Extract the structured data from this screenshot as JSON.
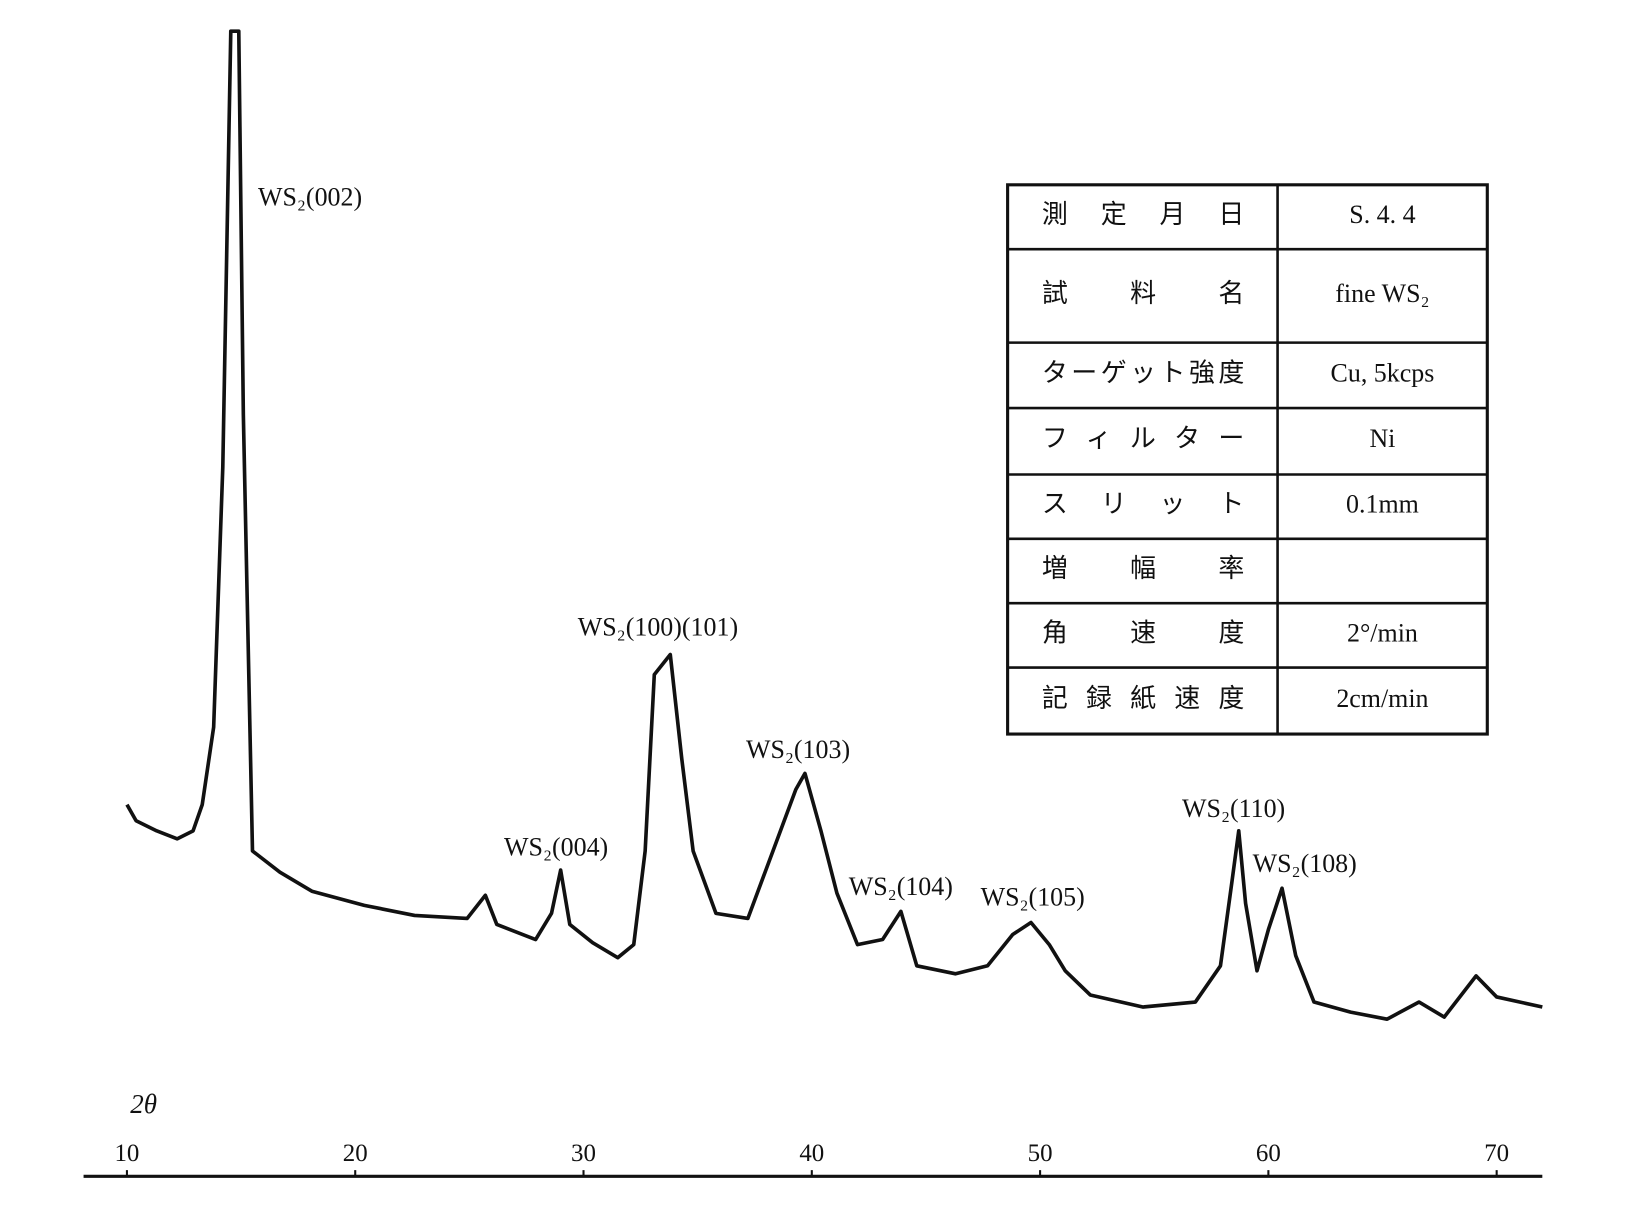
{
  "chart_data": {
    "type": "line",
    "x_label": "2θ",
    "x": [
      10,
      10.4,
      11.3,
      12.2,
      12.9,
      13.3,
      13.8,
      14.2,
      14.55,
      14.9,
      15.1,
      15.5,
      16.7,
      18.1,
      20.4,
      22.6,
      24.9,
      25.7,
      26.2,
      27.9,
      28.6,
      29.0,
      29.4,
      30.4,
      31.5,
      32.2,
      32.7,
      33.1,
      33.8,
      34.3,
      34.8,
      35.8,
      37.2,
      38.3,
      39.3,
      39.7,
      40.4,
      41.1,
      42.0,
      43.1,
      43.9,
      44.6,
      46.3,
      47.7,
      48.8,
      49.6,
      50.4,
      51.1,
      52.2,
      54.5,
      56.8,
      57.9,
      58.4,
      58.7,
      59.0,
      59.5,
      60.0,
      60.6,
      61.2,
      62.0,
      63.6,
      65.2,
      66.6,
      67.7,
      69.1,
      70.0,
      72.0
    ],
    "values": [
      23.2,
      21.6,
      20.6,
      19.8,
      20.6,
      23.2,
      30.9,
      56.7,
      100,
      100,
      61.9,
      18.6,
      16.5,
      14.6,
      13.2,
      12.2,
      11.9,
      14.2,
      11.3,
      9.8,
      12.4,
      16.7,
      11.3,
      9.5,
      8.0,
      9.3,
      18.6,
      36.1,
      38.1,
      27.8,
      18.6,
      12.4,
      11.9,
      18.6,
      24.7,
      26.3,
      20.6,
      14.4,
      9.3,
      9.8,
      12.6,
      7.2,
      6.4,
      7.2,
      10.3,
      11.5,
      9.3,
      6.7,
      4.3,
      3.1,
      3.6,
      7.2,
      15.5,
      20.6,
      13.4,
      6.7,
      10.8,
      14.9,
      8.2,
      3.6,
      2.6,
      1.9,
      3.6,
      2.1,
      6.2,
      4.1,
      3.1
    ],
    "color": "#111111",
    "xlim": [
      8.1,
      72
    ],
    "xticks": [
      10,
      20,
      30,
      40,
      50,
      60,
      70
    ],
    "ylim": [
      0,
      100
    ],
    "annotations": [
      "WS₂(002)",
      "WS₂(004)",
      "WS₂(100)(101)",
      "WS₂(103)",
      "WS₂(104)",
      "WS₂(105)",
      "WS₂(110)",
      "WS₂(108)"
    ],
    "table": {
      "rows": [
        [
          "測定月日",
          "S. 4. 4"
        ],
        [
          "試料名",
          "fine WS₂"
        ],
        [
          "ターゲット強度",
          "Cu, 5kcps"
        ],
        [
          "フィルター",
          "Ni"
        ],
        [
          "スリット",
          "0.1mm"
        ],
        [
          "増幅率"
        ],
        [
          "角速度",
          "2°/min"
        ],
        [
          "記録紙速度",
          "2cm/min"
        ]
      ]
    }
  }
}
